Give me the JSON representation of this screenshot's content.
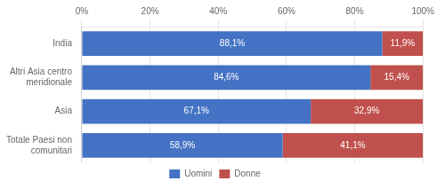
{
  "chart_data": {
    "type": "bar",
    "orientation": "horizontal",
    "stacked": true,
    "categories": [
      "India",
      "Altri Asia centro\nmeridionale",
      "Asia",
      "Totale Paesi non\ncomunitari"
    ],
    "series": [
      {
        "name": "Uomini",
        "color": "#4472C4",
        "values": [
          88.1,
          84.6,
          67.1,
          58.9
        ],
        "value_labels": [
          "88,1%",
          "84,6%",
          "67,1%",
          "58,9%"
        ]
      },
      {
        "name": "Donne",
        "color": "#C0504D",
        "values": [
          11.9,
          15.4,
          32.9,
          41.1
        ],
        "value_labels": [
          "11,9%",
          "15,4%",
          "32,9%",
          "41,1%"
        ]
      }
    ],
    "xlim": [
      0,
      100
    ],
    "xticks": [
      {
        "value": 0,
        "label": "0%"
      },
      {
        "value": 20,
        "label": "20%"
      },
      {
        "value": 40,
        "label": "40%"
      },
      {
        "value": 60,
        "label": "60%"
      },
      {
        "value": 80,
        "label": "80%"
      },
      {
        "value": 100,
        "label": "100%"
      }
    ],
    "grid": true,
    "legend": "bottom",
    "data_labels": true
  }
}
